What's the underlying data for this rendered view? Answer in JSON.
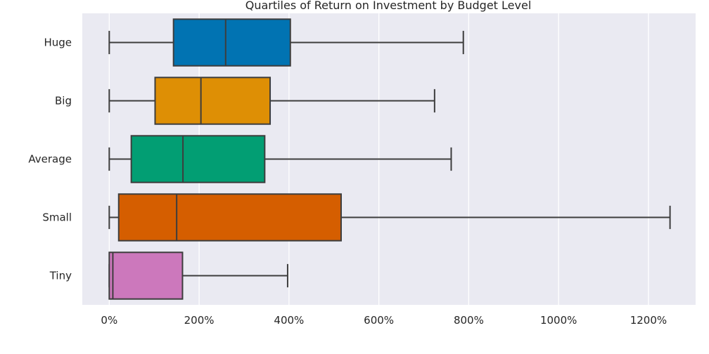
{
  "chart_data": {
    "type": "boxplot",
    "orientation": "horizontal",
    "title": "Quartiles of Return on Investment by Budget Level",
    "xlabel": "",
    "ylabel": "",
    "xlim": [
      -60,
      1305
    ],
    "x_ticks": [
      0,
      200,
      400,
      600,
      800,
      1000,
      1200
    ],
    "x_tick_labels": [
      "0%",
      "200%",
      "400%",
      "600%",
      "800%",
      "1000%",
      "1200%"
    ],
    "grid": true,
    "categories": [
      "Huge",
      "Big",
      "Average",
      "Small",
      "Tiny"
    ],
    "boxes": [
      {
        "category": "Huge",
        "whisker_low": 0,
        "q1": 143,
        "median": 259,
        "q3": 403,
        "whisker_high": 788,
        "color": "#0173b2"
      },
      {
        "category": "Big",
        "whisker_low": 0,
        "q1": 102,
        "median": 204,
        "q3": 358,
        "whisker_high": 724,
        "color": "#de8f05"
      },
      {
        "category": "Average",
        "whisker_low": 0,
        "q1": 49,
        "median": 164,
        "q3": 346,
        "whisker_high": 761,
        "color": "#029e73"
      },
      {
        "category": "Small",
        "whisker_low": 0,
        "q1": 21,
        "median": 150,
        "q3": 516,
        "whisker_high": 1248,
        "color": "#d55e00"
      },
      {
        "category": "Tiny",
        "whisker_low": 0,
        "q1": 0,
        "median": 8,
        "q3": 163,
        "whisker_high": 397,
        "color": "#cc78bc"
      }
    ],
    "colors": {
      "background": "#eaeaf2",
      "grid": "#ffffff",
      "line": "#3d3d3d"
    }
  }
}
